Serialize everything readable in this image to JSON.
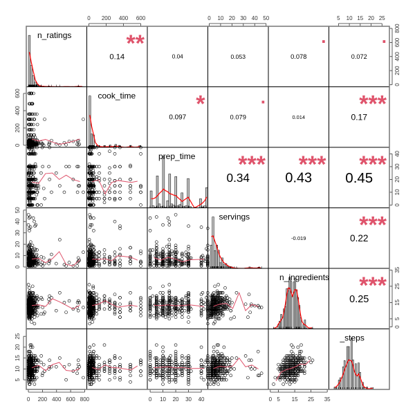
{
  "chart_data": {
    "type": "scatter-matrix",
    "title": "",
    "variables": [
      "n_ratings",
      "cook_time",
      "prep_time",
      "servings",
      "n_ingredients",
      "n_steps"
    ],
    "diagonal_labels": [
      "n_ratings",
      "cook_time",
      "prep_time",
      "servings",
      "n_ingredients",
      "_steps"
    ],
    "ranges": {
      "n_ratings": [
        0,
        800
      ],
      "cook_time": [
        0,
        650
      ],
      "prep_time": [
        0,
        45
      ],
      "servings": [
        0,
        50
      ],
      "n_ingredients": [
        2,
        35
      ],
      "n_steps": [
        2,
        28
      ]
    },
    "axis_ticks": {
      "top": [
        {
          "variable": "cook_time",
          "ticks": [
            "0",
            "200",
            "400",
            "600"
          ],
          "values": [
            0,
            200,
            400,
            600
          ]
        },
        {
          "variable": "servings",
          "ticks": [
            "0",
            "10",
            "20",
            "30",
            "40",
            "50"
          ],
          "values": [
            0,
            10,
            20,
            30,
            40,
            50
          ]
        },
        {
          "variable": "n_steps",
          "ticks": [
            "5",
            "10",
            "15",
            "20",
            "25"
          ],
          "values": [
            5,
            10,
            15,
            20,
            25
          ]
        }
      ],
      "bottom": [
        {
          "variable": "n_ratings",
          "ticks": [
            "0",
            "200",
            "400",
            "600",
            "800"
          ],
          "values": [
            0,
            200,
            400,
            600,
            800
          ]
        },
        {
          "variable": "prep_time",
          "ticks": [
            "0",
            "10",
            "20",
            "30",
            "40"
          ],
          "values": [
            0,
            10,
            20,
            30,
            40
          ]
        },
        {
          "variable": "n_ingredients",
          "ticks": [
            "0",
            "5",
            "15",
            "25",
            "35"
          ],
          "values": [
            0,
            5,
            15,
            25,
            35
          ]
        }
      ],
      "left": [
        {
          "variable": "cook_time",
          "ticks": [
            "0",
            "200",
            "400",
            "600"
          ],
          "values": [
            0,
            200,
            400,
            600
          ]
        },
        {
          "variable": "servings",
          "ticks": [
            "0",
            "10",
            "20",
            "30",
            "40",
            "50"
          ],
          "values": [
            0,
            10,
            20,
            30,
            40,
            50
          ]
        },
        {
          "variable": "n_steps",
          "ticks": [
            "5",
            "10",
            "15",
            "20",
            "25"
          ],
          "values": [
            5,
            10,
            15,
            20,
            25
          ]
        }
      ],
      "right": [
        {
          "variable": "n_ratings",
          "ticks": [
            "0",
            "200",
            "400",
            "600",
            "800"
          ],
          "values": [
            0,
            200,
            400,
            600,
            800
          ]
        },
        {
          "variable": "prep_time",
          "ticks": [
            "0",
            "10",
            "20",
            "30",
            "40"
          ],
          "values": [
            0,
            10,
            20,
            30,
            40
          ]
        },
        {
          "variable": "n_ingredients",
          "ticks": [
            "0",
            "5",
            "15",
            "25",
            "35"
          ],
          "values": [
            0,
            5,
            15,
            25,
            35
          ]
        }
      ]
    },
    "correlations": [
      {
        "row": 0,
        "col": 1,
        "r": 0.14,
        "label": "0.14",
        "stars": "**"
      },
      {
        "row": 0,
        "col": 2,
        "r": 0.04,
        "label": "0.04",
        "stars": ""
      },
      {
        "row": 0,
        "col": 3,
        "r": 0.053,
        "label": "0.053",
        "stars": ""
      },
      {
        "row": 0,
        "col": 4,
        "r": 0.078,
        "label": "0.078",
        "stars": "."
      },
      {
        "row": 0,
        "col": 5,
        "r": 0.072,
        "label": "0.072",
        "stars": "."
      },
      {
        "row": 1,
        "col": 2,
        "r": 0.097,
        "label": "0.097",
        "stars": "*"
      },
      {
        "row": 1,
        "col": 3,
        "r": 0.079,
        "label": "0.079",
        "stars": "."
      },
      {
        "row": 1,
        "col": 4,
        "r": 0.014,
        "label": "0.014",
        "stars": ""
      },
      {
        "row": 1,
        "col": 5,
        "r": 0.17,
        "label": "0.17",
        "stars": "***"
      },
      {
        "row": 2,
        "col": 3,
        "r": 0.34,
        "label": "0.34",
        "stars": "***"
      },
      {
        "row": 2,
        "col": 4,
        "r": 0.43,
        "label": "0.43",
        "stars": "***"
      },
      {
        "row": 2,
        "col": 5,
        "r": 0.45,
        "label": "0.45",
        "stars": "***"
      },
      {
        "row": 3,
        "col": 4,
        "r": -0.019,
        "label": "-0.019",
        "stars": ""
      },
      {
        "row": 3,
        "col": 5,
        "r": 0.22,
        "label": "0.22",
        "stars": "***"
      },
      {
        "row": 4,
        "col": 5,
        "r": 0.25,
        "label": "0.25",
        "stars": "***"
      }
    ],
    "colors": {
      "stars": "#DF536B",
      "smooth": "#DF536B",
      "density": "#FF0000",
      "hist_fill": "#BEBEBE"
    }
  }
}
